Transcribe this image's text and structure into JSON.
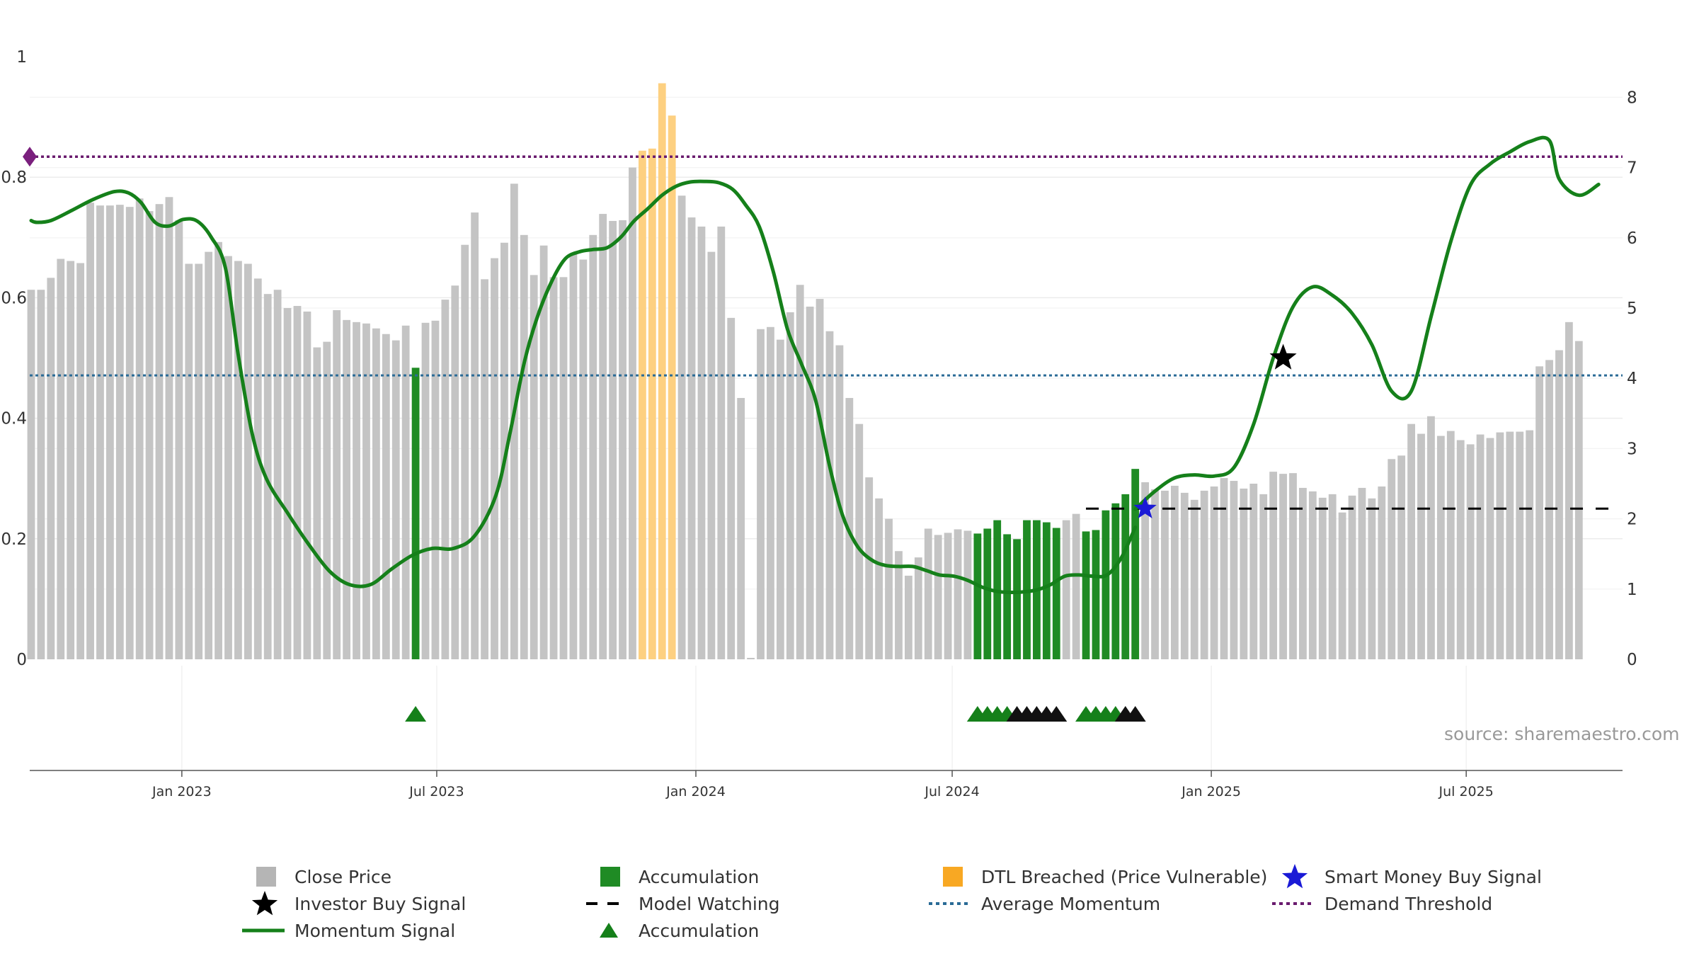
{
  "chart_data": {
    "type": "bar",
    "title": "",
    "xlabel": "",
    "ylabel": "",
    "left_axis": {
      "ylim": [
        0,
        1
      ],
      "ticks": [
        "0",
        "0.2",
        "0.4",
        "0.6",
        "0.8",
        "1"
      ]
    },
    "right_axis": {
      "ylim": [
        0,
        8.3
      ],
      "ticks": [
        "0",
        "1",
        "2",
        "3",
        "4",
        "5",
        "6",
        "7",
        "8"
      ]
    },
    "x_axis": {
      "start": "2022-09-15",
      "end": "2025-10-20",
      "tick_labels": [
        "Jan 2023",
        "Jul 2023",
        "Jan 2024",
        "Jul 2024",
        "Jan 2025",
        "Jul 2025"
      ],
      "tick_dates": [
        "2023-01-01",
        "2023-07-01",
        "2024-01-01",
        "2024-07-01",
        "2025-01-01",
        "2025-07-01"
      ]
    },
    "close_price": [
      [
        "2022-09-16",
        5.26
      ],
      [
        "2022-09-23",
        5.26
      ],
      [
        "2022-09-30",
        5.43
      ],
      [
        "2022-10-07",
        5.7
      ],
      [
        "2022-10-14",
        5.67
      ],
      [
        "2022-10-21",
        5.64
      ],
      [
        "2022-10-28",
        6.5
      ],
      [
        "2022-11-04",
        6.46
      ],
      [
        "2022-11-11",
        6.46
      ],
      [
        "2022-11-18",
        6.47
      ],
      [
        "2022-11-25",
        6.44
      ],
      [
        "2022-12-02",
        6.56
      ],
      [
        "2022-12-09",
        6.38
      ],
      [
        "2022-12-16",
        6.48
      ],
      [
        "2022-12-23",
        6.58
      ],
      [
        "2022-12-30",
        6.25
      ],
      [
        "2023-01-06",
        5.63
      ],
      [
        "2023-01-13",
        5.63
      ],
      [
        "2023-01-20",
        5.8
      ],
      [
        "2023-01-27",
        5.94
      ],
      [
        "2023-02-03",
        5.74
      ],
      [
        "2023-02-10",
        5.67
      ],
      [
        "2023-02-17",
        5.63
      ],
      [
        "2023-02-24",
        5.42
      ],
      [
        "2023-03-03",
        5.2
      ],
      [
        "2023-03-10",
        5.26
      ],
      [
        "2023-03-17",
        5.0
      ],
      [
        "2023-03-24",
        5.03
      ],
      [
        "2023-03-31",
        4.95
      ],
      [
        "2023-04-07",
        4.44
      ],
      [
        "2023-04-14",
        4.52
      ],
      [
        "2023-04-21",
        4.97
      ],
      [
        "2023-04-28",
        4.83
      ],
      [
        "2023-05-05",
        4.8
      ],
      [
        "2023-05-12",
        4.78
      ],
      [
        "2023-05-19",
        4.71
      ],
      [
        "2023-05-26",
        4.63
      ],
      [
        "2023-06-02",
        4.54
      ],
      [
        "2023-06-09",
        4.75
      ],
      [
        "2023-06-16",
        4.15
      ],
      [
        "2023-06-23",
        4.79
      ],
      [
        "2023-06-30",
        4.82
      ],
      [
        "2023-07-07",
        5.12
      ],
      [
        "2023-07-14",
        5.32
      ],
      [
        "2023-07-21",
        5.9
      ],
      [
        "2023-07-28",
        6.36
      ],
      [
        "2023-08-04",
        5.41
      ],
      [
        "2023-08-11",
        5.71
      ],
      [
        "2023-08-18",
        5.93
      ],
      [
        "2023-08-25",
        6.77
      ],
      [
        "2023-09-01",
        6.04
      ],
      [
        "2023-09-08",
        5.47
      ],
      [
        "2023-09-15",
        5.89
      ],
      [
        "2023-09-22",
        5.44
      ],
      [
        "2023-09-29",
        5.44
      ],
      [
        "2023-10-06",
        5.78
      ],
      [
        "2023-10-13",
        5.69
      ],
      [
        "2023-10-20",
        6.04
      ],
      [
        "2023-10-27",
        6.34
      ],
      [
        "2023-11-03",
        6.24
      ],
      [
        "2023-11-10",
        6.25
      ],
      [
        "2023-11-17",
        7.0
      ],
      [
        "2023-11-24",
        7.24
      ],
      [
        "2023-12-01",
        7.27
      ],
      [
        "2023-12-08",
        8.2
      ],
      [
        "2023-12-15",
        7.74
      ],
      [
        "2023-12-22",
        6.6
      ],
      [
        "2023-12-29",
        6.29
      ],
      [
        "2024-01-05",
        6.16
      ],
      [
        "2024-01-12",
        5.8
      ],
      [
        "2024-01-19",
        6.16
      ],
      [
        "2024-01-26",
        4.86
      ],
      [
        "2024-02-02",
        3.72
      ],
      [
        "2024-02-09",
        0.02
      ],
      [
        "2024-02-16",
        4.7
      ],
      [
        "2024-02-23",
        4.73
      ],
      [
        "2024-03-01",
        4.55
      ],
      [
        "2024-03-08",
        4.94
      ],
      [
        "2024-03-15",
        5.33
      ],
      [
        "2024-03-22",
        5.02
      ],
      [
        "2024-03-29",
        5.13
      ],
      [
        "2024-04-05",
        4.67
      ],
      [
        "2024-04-12",
        4.47
      ],
      [
        "2024-04-19",
        3.72
      ],
      [
        "2024-04-26",
        3.35
      ],
      [
        "2024-05-03",
        2.59
      ],
      [
        "2024-05-10",
        2.29
      ],
      [
        "2024-05-17",
        2.0
      ],
      [
        "2024-05-24",
        1.54
      ],
      [
        "2024-05-31",
        1.19
      ],
      [
        "2024-06-07",
        1.45
      ],
      [
        "2024-06-14",
        1.86
      ],
      [
        "2024-06-21",
        1.77
      ],
      [
        "2024-06-28",
        1.8
      ],
      [
        "2024-07-05",
        1.85
      ],
      [
        "2024-07-12",
        1.83
      ],
      [
        "2024-07-19",
        1.79
      ],
      [
        "2024-07-26",
        1.86
      ],
      [
        "2024-08-02",
        1.98
      ],
      [
        "2024-08-09",
        1.78
      ],
      [
        "2024-08-16",
        1.71
      ],
      [
        "2024-08-23",
        1.98
      ],
      [
        "2024-08-30",
        1.98
      ],
      [
        "2024-09-06",
        1.95
      ],
      [
        "2024-09-13",
        1.87
      ],
      [
        "2024-09-20",
        1.98
      ],
      [
        "2024-09-27",
        2.07
      ],
      [
        "2024-10-04",
        1.82
      ],
      [
        "2024-10-11",
        1.84
      ],
      [
        "2024-10-18",
        2.12
      ],
      [
        "2024-10-25",
        2.22
      ],
      [
        "2024-11-01",
        2.35
      ],
      [
        "2024-11-08",
        2.71
      ],
      [
        "2024-11-15",
        2.52
      ],
      [
        "2024-11-22",
        2.42
      ],
      [
        "2024-11-29",
        2.4
      ],
      [
        "2024-12-06",
        2.47
      ],
      [
        "2024-12-13",
        2.37
      ],
      [
        "2024-12-20",
        2.27
      ],
      [
        "2024-12-27",
        2.4
      ],
      [
        "2025-01-03",
        2.46
      ],
      [
        "2025-01-10",
        2.58
      ],
      [
        "2025-01-17",
        2.54
      ],
      [
        "2025-01-24",
        2.43
      ],
      [
        "2025-01-31",
        2.5
      ],
      [
        "2025-02-07",
        2.35
      ],
      [
        "2025-02-14",
        2.67
      ],
      [
        "2025-02-21",
        2.64
      ],
      [
        "2025-02-28",
        2.65
      ],
      [
        "2025-03-07",
        2.44
      ],
      [
        "2025-03-14",
        2.39
      ],
      [
        "2025-03-21",
        2.3
      ],
      [
        "2025-03-28",
        2.35
      ],
      [
        "2025-04-04",
        2.09
      ],
      [
        "2025-04-11",
        2.33
      ],
      [
        "2025-04-18",
        2.44
      ],
      [
        "2025-04-25",
        2.29
      ],
      [
        "2025-05-02",
        2.46
      ],
      [
        "2025-05-09",
        2.85
      ],
      [
        "2025-05-16",
        2.9
      ],
      [
        "2025-05-23",
        3.35
      ],
      [
        "2025-05-30",
        3.21
      ],
      [
        "2025-06-06",
        3.46
      ],
      [
        "2025-06-13",
        3.18
      ],
      [
        "2025-06-20",
        3.25
      ],
      [
        "2025-06-27",
        3.12
      ],
      [
        "2025-07-04",
        3.06
      ],
      [
        "2025-07-11",
        3.2
      ],
      [
        "2025-07-18",
        3.15
      ],
      [
        "2025-07-25",
        3.23
      ],
      [
        "2025-08-01",
        3.24
      ],
      [
        "2025-08-08",
        3.24
      ],
      [
        "2025-08-15",
        3.26
      ],
      [
        "2025-08-22",
        4.17
      ],
      [
        "2025-08-29",
        4.26
      ],
      [
        "2025-09-05",
        4.4
      ],
      [
        "2025-09-12",
        4.8
      ],
      [
        "2025-09-19",
        4.53
      ]
    ],
    "accumulation_bars": [
      "2023-06-16",
      "2024-07-19",
      "2024-07-26",
      "2024-08-02",
      "2024-08-09",
      "2024-08-16",
      "2024-08-23",
      "2024-08-30",
      "2024-09-06",
      "2024-09-13",
      "2024-10-04",
      "2024-10-11",
      "2024-10-18",
      "2024-10-25",
      "2024-11-01",
      "2024-11-08"
    ],
    "dtl_breached_bars": [
      "2023-11-24",
      "2023-12-01",
      "2023-12-08",
      "2023-12-15"
    ],
    "momentum_signal": [
      [
        "2022-09-16",
        0.728
      ],
      [
        "2022-09-23",
        0.725
      ],
      [
        "2022-10-07",
        0.728
      ],
      [
        "2022-10-28",
        0.745
      ],
      [
        "2022-11-18",
        0.763
      ],
      [
        "2022-12-09",
        0.776
      ],
      [
        "2022-12-23",
        0.774
      ],
      [
        "2023-01-06",
        0.758
      ],
      [
        "2023-01-20",
        0.725
      ],
      [
        "2023-02-03",
        0.719
      ],
      [
        "2023-02-17",
        0.73
      ],
      [
        "2023-03-03",
        0.727
      ],
      [
        "2023-03-17",
        0.7
      ],
      [
        "2023-03-31",
        0.649
      ],
      [
        "2023-04-14",
        0.506
      ],
      [
        "2023-04-28",
        0.374
      ],
      [
        "2023-05-12",
        0.3
      ],
      [
        "2023-06-02",
        0.243
      ],
      [
        "2023-06-23",
        0.191
      ],
      [
        "2023-07-14",
        0.146
      ],
      [
        "2023-08-04",
        0.124
      ],
      [
        "2023-08-25",
        0.124
      ],
      [
        "2023-09-15",
        0.15
      ],
      [
        "2023-10-06",
        0.173
      ],
      [
        "2023-10-27",
        0.184
      ],
      [
        "2023-11-17",
        0.184
      ],
      [
        "2023-12-08",
        0.205
      ],
      [
        "2023-12-29",
        0.272
      ],
      [
        "2024-01-12",
        0.375
      ],
      [
        "2024-01-26",
        0.491
      ],
      [
        "2024-02-09",
        0.565
      ],
      [
        "2024-02-23",
        0.624
      ],
      [
        "2024-03-08",
        0.664
      ],
      [
        "2024-03-22",
        0.676
      ],
      [
        "2024-04-05",
        0.68
      ],
      [
        "2024-04-19",
        0.683
      ],
      [
        "2024-05-03",
        0.701
      ],
      [
        "2024-05-17",
        0.727
      ],
      [
        "2024-05-31",
        0.748
      ],
      [
        "2024-06-14",
        0.77
      ],
      [
        "2024-06-28",
        0.785
      ],
      [
        "2024-07-12",
        0.792
      ],
      [
        "2024-07-26",
        0.793
      ],
      [
        "2024-08-09",
        0.791
      ],
      [
        "2024-08-23",
        0.78
      ],
      [
        "2024-09-06",
        0.755
      ],
      [
        "2024-09-20",
        0.718
      ],
      [
        "2024-10-04",
        0.643
      ],
      [
        "2024-10-18",
        0.548
      ],
      [
        "2024-11-01",
        0.49
      ],
      [
        "2024-11-15",
        0.43
      ],
      [
        "2024-11-29",
        0.32
      ],
      [
        "2024-12-13",
        0.24
      ],
      [
        "2024-12-27",
        0.19
      ],
      [
        "2025-01-10",
        0.166
      ],
      [
        "2025-01-24",
        0.156
      ],
      [
        "2025-02-07",
        0.154
      ],
      [
        "2025-02-21",
        0.154
      ],
      [
        "2025-03-07",
        0.147
      ],
      [
        "2025-03-21",
        0.14
      ],
      [
        "2025-04-04",
        0.138
      ],
      [
        "2025-04-18",
        0.131
      ],
      [
        "2025-05-02",
        0.12
      ],
      [
        "2025-05-16",
        0.113
      ],
      [
        "2025-05-30",
        0.111
      ],
      [
        "2025-06-13",
        0.112
      ],
      [
        "2025-06-27",
        0.115
      ],
      [
        "2025-07-11",
        0.124
      ],
      [
        "2025-07-25",
        0.138
      ],
      [
        "2025-08-08",
        0.14
      ],
      [
        "2025-08-22",
        0.138
      ],
      [
        "2025-09-05",
        0.14
      ],
      [
        "2025-09-19",
        0.168
      ],
      [
        "2025-10-03",
        0.219
      ]
    ],
    "momentum_signal_dates_note": "",
    "momentum_signal_2": [
      [
        "2024-11-08",
        0.249
      ],
      [
        "2024-11-22",
        0.279
      ],
      [
        "2024-12-06",
        0.301
      ],
      [
        "2024-12-20",
        0.306
      ],
      [
        "2025-01-03",
        0.304
      ],
      [
        "2025-01-17",
        0.318
      ],
      [
        "2025-01-31",
        0.39
      ],
      [
        "2025-02-14",
        0.5
      ],
      [
        "2025-02-28",
        0.585
      ],
      [
        "2025-03-14",
        0.618
      ],
      [
        "2025-03-28",
        0.604
      ],
      [
        "2025-04-11",
        0.574
      ],
      [
        "2025-04-25",
        0.522
      ],
      [
        "2025-05-09",
        0.445
      ],
      [
        "2025-05-23",
        0.445
      ],
      [
        "2025-06-06",
        0.568
      ],
      [
        "2025-06-20",
        0.693
      ],
      [
        "2025-07-04",
        0.787
      ],
      [
        "2025-07-18",
        0.822
      ],
      [
        "2025-08-01",
        0.842
      ],
      [
        "2025-08-15",
        0.859
      ],
      [
        "2025-08-29",
        0.861
      ],
      [
        "2025-09-05",
        0.797
      ],
      [
        "2025-09-19",
        0.77
      ],
      [
        "2025-10-03",
        0.788
      ]
    ],
    "average_momentum": 0.471,
    "demand_threshold": 0.834,
    "model_watching": {
      "value": 0.25,
      "start": "2024-10-04",
      "end": "2025-10-17"
    },
    "investor_buy_signal": {
      "date": "2025-02-21",
      "value": 0.5
    },
    "smart_money_buy_signal": {
      "date": "2024-11-15",
      "value": 0.25
    },
    "accumulation_markers": [
      {
        "date": "2023-06-16",
        "color": "#15801a"
      },
      {
        "date": "2024-07-19",
        "color": "#15801a"
      },
      {
        "date": "2024-07-26",
        "color": "#15801a"
      },
      {
        "date": "2024-08-02",
        "color": "#15801a"
      },
      {
        "date": "2024-08-09",
        "color": "#15801a"
      },
      {
        "date": "2024-08-16",
        "color": "#111111"
      },
      {
        "date": "2024-08-23",
        "color": "#111111"
      },
      {
        "date": "2024-08-30",
        "color": "#111111"
      },
      {
        "date": "2024-09-06",
        "color": "#111111"
      },
      {
        "date": "2024-09-13",
        "color": "#111111"
      },
      {
        "date": "2024-10-04",
        "color": "#15801a"
      },
      {
        "date": "2024-10-11",
        "color": "#15801a"
      },
      {
        "date": "2024-10-18",
        "color": "#15801a"
      },
      {
        "date": "2024-10-25",
        "color": "#15801a"
      },
      {
        "date": "2024-11-01",
        "color": "#111111"
      },
      {
        "date": "2024-11-08",
        "color": "#111111"
      }
    ],
    "colors": {
      "close_price": "#c4c4c4",
      "accumulation": "#1f8b24",
      "dtl_breached": "#fdd081",
      "momentum": "#15801a",
      "average_momentum": "#2a6b96",
      "demand_threshold": "#6a1b6e",
      "smart_money": "#1a1ad6",
      "investor": "#000000"
    },
    "legend_placement": "bottom",
    "legend": [
      {
        "label": "Close Price",
        "kind": "square",
        "color": "#b5b5b5"
      },
      {
        "label": "Accumulation",
        "kind": "square",
        "color": "#1f8b24"
      },
      {
        "label": "DTL Breached (Price Vulnerable)",
        "kind": "square",
        "color": "#f8a823"
      },
      {
        "label": "Smart Money Buy Signal",
        "kind": "star",
        "color": "#1a1ad6"
      },
      {
        "label": "Investor Buy Signal",
        "kind": "star",
        "color": "#000000"
      },
      {
        "label": "Model Watching",
        "kind": "dash",
        "color": "#000000"
      },
      {
        "label": "Average Momentum",
        "kind": "dot",
        "color": "#2a6b96"
      },
      {
        "label": "Demand Threshold",
        "kind": "dot",
        "color": "#6a1b6e"
      },
      {
        "label": "Momentum Signal",
        "kind": "line",
        "color": "#15801a"
      },
      {
        "label": "Accumulation",
        "kind": "triangle",
        "color": "#15801a"
      }
    ]
  },
  "source_text": "source: sharemaestro.com"
}
